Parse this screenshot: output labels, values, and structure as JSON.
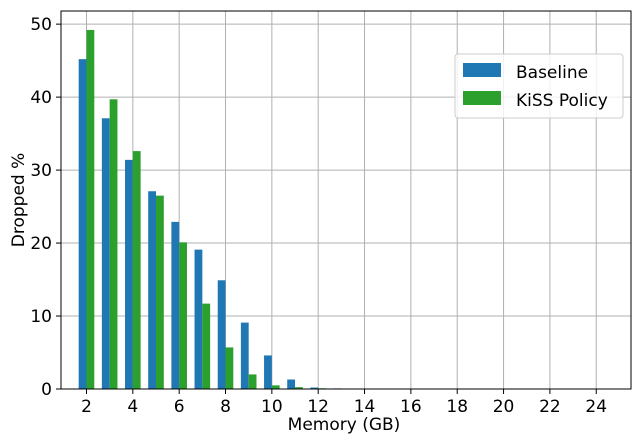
{
  "chart_data": {
    "type": "bar",
    "xlabel": "Memory (GB)",
    "ylabel": "Dropped %",
    "x": [
      2,
      3,
      4,
      5,
      6,
      7,
      8,
      9,
      10,
      11,
      12,
      13,
      14,
      15,
      16,
      17,
      18,
      19,
      20,
      21,
      22,
      23,
      24
    ],
    "x_ticks": [
      2,
      4,
      6,
      8,
      10,
      12,
      14,
      16,
      18,
      20,
      22,
      24
    ],
    "y_ticks": [
      0,
      10,
      20,
      30,
      40,
      50
    ],
    "xlim": [
      0.9,
      25.5
    ],
    "ylim": [
      0,
      51.8
    ],
    "grid": true,
    "legend_position": "top-right",
    "series": [
      {
        "name": "Baseline",
        "color": "#1f77b4",
        "values": [
          45.2,
          37.1,
          31.4,
          27.1,
          22.9,
          19.1,
          14.9,
          9.1,
          4.6,
          1.3,
          0.2,
          0.08,
          0.05,
          0.04,
          0.03,
          0.03,
          0.03,
          0.03,
          0.03,
          0.03,
          0.03,
          0.03,
          0.03
        ]
      },
      {
        "name": "KiSS Policy",
        "color": "#2ca02c",
        "values": [
          49.2,
          39.7,
          32.6,
          26.5,
          20.1,
          11.7,
          5.7,
          2.0,
          0.5,
          0.25,
          0.1,
          0.06,
          0.04,
          0.03,
          0.03,
          0.03,
          0.03,
          0.03,
          0.03,
          0.03,
          0.03,
          0.03,
          0.03
        ]
      }
    ]
  }
}
